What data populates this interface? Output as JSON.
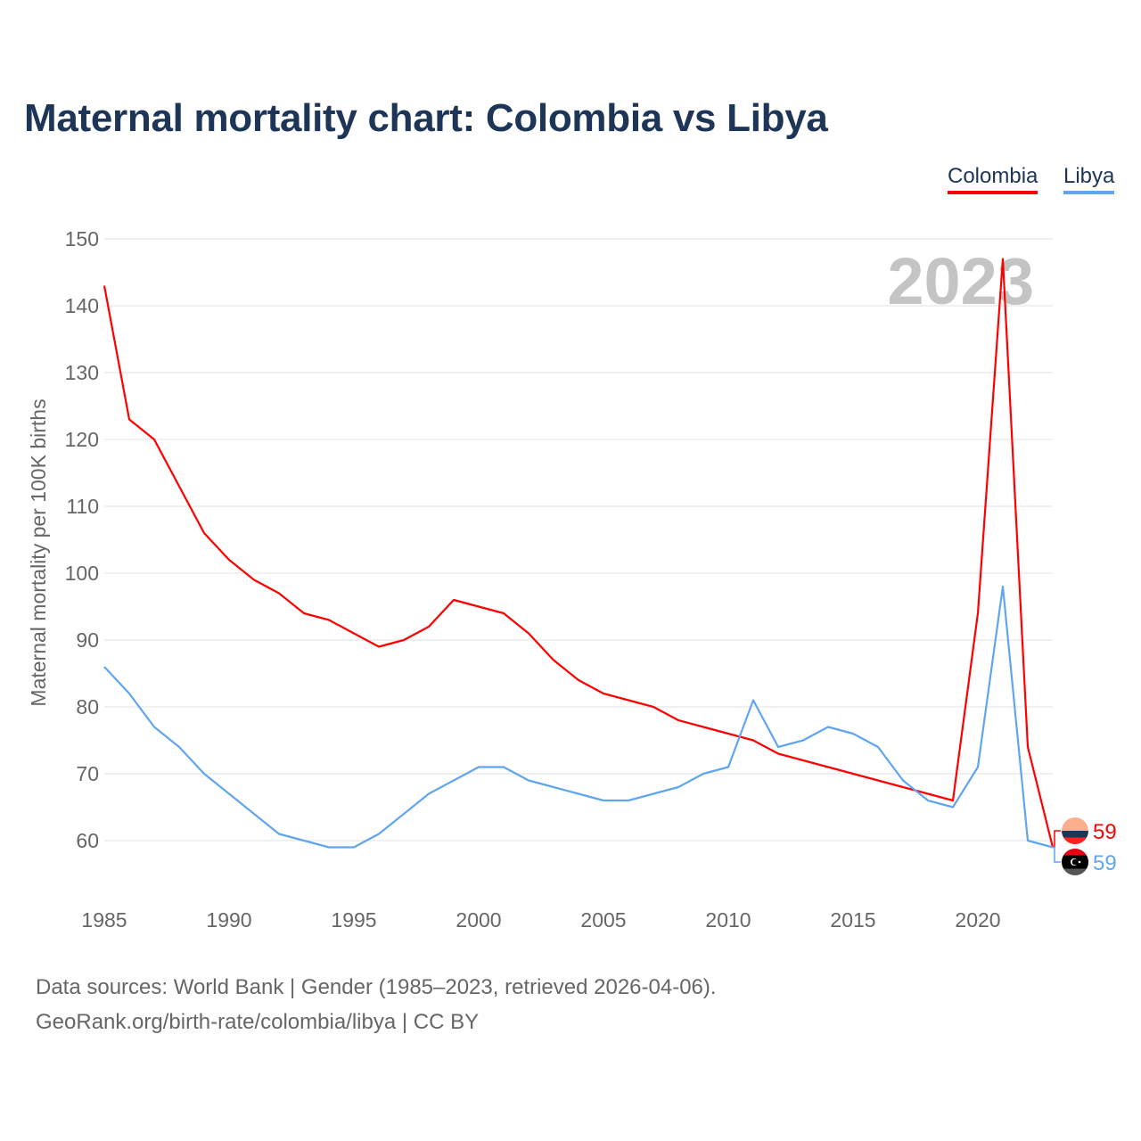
{
  "title": "Maternal mortality chart: Colombia vs Libya",
  "footer": {
    "line1": "Data sources: World Bank | Gender (1985–2023, retrieved 2026-04-06).",
    "line2": "GeoRank.org/birth-rate/colombia/libya | CC BY"
  },
  "chart_data": {
    "type": "line",
    "title": "Maternal mortality chart: Colombia vs Libya",
    "ylabel": "Maternal mortality per 100K births",
    "xlabel": "",
    "year_watermark": "2023",
    "ylim": [
      50,
      150
    ],
    "xlim": [
      1985,
      2023
    ],
    "yticks": [
      60,
      70,
      80,
      90,
      100,
      110,
      120,
      130,
      140,
      150
    ],
    "xticks": [
      1985,
      1990,
      1995,
      2000,
      2005,
      2010,
      2015,
      2020
    ],
    "legend_position": "top-right",
    "x": [
      1985,
      1986,
      1987,
      1988,
      1989,
      1990,
      1991,
      1992,
      1993,
      1994,
      1995,
      1996,
      1997,
      1998,
      1999,
      2000,
      2001,
      2002,
      2003,
      2004,
      2005,
      2006,
      2007,
      2008,
      2009,
      2010,
      2011,
      2012,
      2013,
      2014,
      2015,
      2016,
      2017,
      2018,
      2019,
      2020,
      2021,
      2022,
      2023
    ],
    "series": [
      {
        "name": "Colombia",
        "color": "#ff0000",
        "end_label": "59",
        "values": [
          143,
          123,
          120,
          113,
          106,
          102,
          99,
          97,
          94,
          93,
          91,
          89,
          90,
          92,
          96,
          95,
          94,
          91,
          87,
          84,
          82,
          81,
          80,
          78,
          77,
          76,
          75,
          73,
          72,
          71,
          70,
          69,
          68,
          67,
          66,
          94,
          147,
          74,
          59
        ]
      },
      {
        "name": "Libya",
        "color": "#60a5f0",
        "end_label": "59",
        "values": [
          86,
          82,
          77,
          74,
          70,
          67,
          64,
          61,
          60,
          59,
          59,
          61,
          64,
          67,
          69,
          71,
          71,
          69,
          68,
          67,
          66,
          66,
          67,
          68,
          70,
          71,
          81,
          74,
          75,
          77,
          76,
          74,
          69,
          66,
          65,
          71,
          98,
          60,
          59
        ]
      }
    ]
  }
}
